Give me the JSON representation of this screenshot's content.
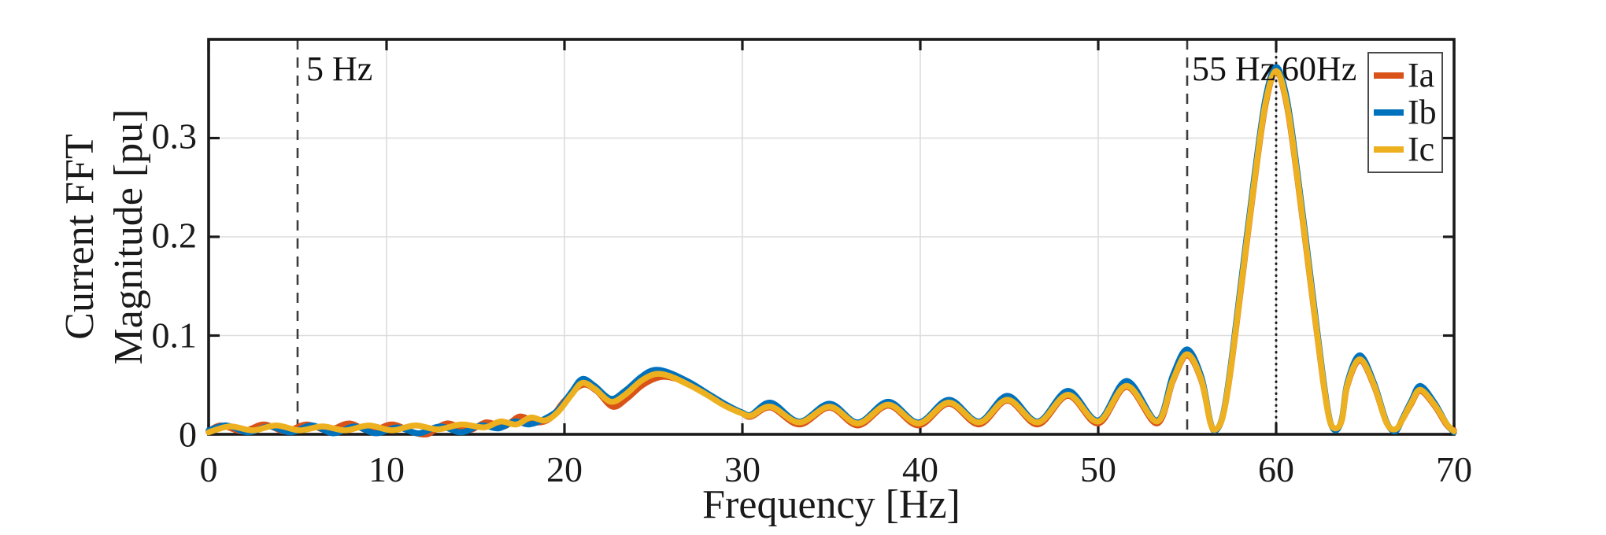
{
  "chart_data": {
    "type": "line",
    "title": "",
    "xlabel": "Frequency [Hz]",
    "ylabel": "Current FFT Magnitude [pu]",
    "ylabel_lines": [
      "Current FFT",
      "Magnitude [pu]"
    ],
    "xlim": [
      0,
      70
    ],
    "ylim": [
      0,
      0.4
    ],
    "grid": true,
    "x_ticks": [
      0,
      10,
      20,
      30,
      40,
      50,
      60,
      70
    ],
    "x_tick_labels": [
      "0",
      "10",
      "20",
      "30",
      "40",
      "50",
      "60",
      "70"
    ],
    "y_ticks": [
      0,
      0.1,
      0.2,
      0.3
    ],
    "y_tick_labels": [
      "0",
      "0.1",
      "0.2",
      "0.3"
    ],
    "legend": {
      "position": "northeast",
      "entries": [
        {
          "label": "Ia",
          "color": "#D95319"
        },
        {
          "label": "Ib",
          "color": "#0072BD"
        },
        {
          "label": "Ic",
          "color": "#EDB120"
        }
      ]
    },
    "annotations": [
      {
        "label": "5 Hz",
        "x": 5,
        "line": "dashed"
      },
      {
        "label": "55 Hz",
        "x": 55,
        "line": "dashed"
      },
      {
        "label": "60Hz",
        "x": 60,
        "line": "dotted"
      }
    ],
    "main_peak": {
      "x": 60,
      "y": 0.37
    },
    "series": [
      {
        "name": "Ia",
        "color": "#D95319",
        "points": [
          [
            0,
            0.003
          ],
          [
            0.7,
            0.009
          ],
          [
            1.9,
            0.003
          ],
          [
            3.1,
            0.01
          ],
          [
            4.3,
            0.003
          ],
          [
            5.5,
            0.01
          ],
          [
            6.7,
            0.004
          ],
          [
            7.9,
            0.011
          ],
          [
            9.1,
            0.003
          ],
          [
            10.3,
            0.01
          ],
          [
            11.5,
            0.002
          ],
          [
            12.3,
            0.0
          ],
          [
            13.4,
            0.011
          ],
          [
            14.6,
            0.004
          ],
          [
            15.6,
            0.012
          ],
          [
            16.6,
            0.008
          ],
          [
            17.5,
            0.018
          ],
          [
            18.4,
            0.012
          ],
          [
            19.2,
            0.016
          ],
          [
            20.0,
            0.034
          ],
          [
            21.0,
            0.05
          ],
          [
            21.8,
            0.044
          ],
          [
            22.7,
            0.028
          ],
          [
            23.5,
            0.036
          ],
          [
            24.4,
            0.05
          ],
          [
            25.4,
            0.058
          ],
          [
            26.3,
            0.056
          ],
          [
            27.2,
            0.049
          ],
          [
            28.1,
            0.04
          ],
          [
            29.0,
            0.03
          ],
          [
            30.0,
            0.021
          ],
          [
            30.5,
            0.018
          ],
          [
            31.6,
            0.027
          ],
          [
            33.2,
            0.01
          ],
          [
            34.9,
            0.027
          ],
          [
            36.5,
            0.009
          ],
          [
            38.2,
            0.029
          ],
          [
            39.9,
            0.009
          ],
          [
            41.6,
            0.031
          ],
          [
            43.3,
            0.01
          ],
          [
            44.9,
            0.034
          ],
          [
            46.6,
            0.01
          ],
          [
            48.3,
            0.039
          ],
          [
            50.0,
            0.011
          ],
          [
            51.6,
            0.048
          ],
          [
            53.3,
            0.011
          ],
          [
            54.2,
            0.054
          ],
          [
            55.0,
            0.08
          ],
          [
            55.8,
            0.054
          ],
          [
            56.3,
            0.012
          ],
          [
            56.6,
            0.004
          ],
          [
            57.0,
            0.018
          ],
          [
            57.4,
            0.059
          ],
          [
            58.1,
            0.158
          ],
          [
            58.8,
            0.258
          ],
          [
            59.4,
            0.333
          ],
          [
            60.0,
            0.368
          ],
          [
            60.6,
            0.333
          ],
          [
            61.2,
            0.258
          ],
          [
            61.9,
            0.158
          ],
          [
            62.6,
            0.059
          ],
          [
            63.0,
            0.015
          ],
          [
            63.35,
            0.005
          ],
          [
            63.7,
            0.015
          ],
          [
            64.0,
            0.049
          ],
          [
            64.7,
            0.075
          ],
          [
            65.5,
            0.049
          ],
          [
            66.2,
            0.012
          ],
          [
            66.7,
            0.004
          ],
          [
            67.1,
            0.015
          ],
          [
            67.6,
            0.031
          ],
          [
            68.1,
            0.044
          ],
          [
            68.9,
            0.029
          ],
          [
            69.6,
            0.009
          ],
          [
            70,
            0.004
          ]
        ]
      },
      {
        "name": "Ib",
        "color": "#0072BD",
        "points": [
          [
            0,
            0.004
          ],
          [
            1.0,
            0.009
          ],
          [
            2.2,
            0.002
          ],
          [
            3.4,
            0.008
          ],
          [
            4.6,
            0.002
          ],
          [
            5.8,
            0.009
          ],
          [
            7.0,
            0.001
          ],
          [
            8.2,
            0.008
          ],
          [
            9.4,
            0.001
          ],
          [
            10.6,
            0.007
          ],
          [
            11.8,
            0.001
          ],
          [
            13.0,
            0.008
          ],
          [
            14.2,
            0.002
          ],
          [
            15.3,
            0.009
          ],
          [
            16.3,
            0.006
          ],
          [
            17.2,
            0.013
          ],
          [
            18.0,
            0.01
          ],
          [
            18.8,
            0.015
          ],
          [
            19.6,
            0.024
          ],
          [
            20.4,
            0.043
          ],
          [
            21.0,
            0.056
          ],
          [
            21.7,
            0.049
          ],
          [
            22.6,
            0.036
          ],
          [
            23.4,
            0.044
          ],
          [
            24.3,
            0.058
          ],
          [
            25.0,
            0.065
          ],
          [
            25.8,
            0.063
          ],
          [
            27.0,
            0.053
          ],
          [
            28.0,
            0.042
          ],
          [
            29.0,
            0.031
          ],
          [
            30.0,
            0.022
          ],
          [
            30.5,
            0.02
          ],
          [
            31.6,
            0.032
          ],
          [
            33.2,
            0.013
          ],
          [
            34.9,
            0.031
          ],
          [
            36.5,
            0.012
          ],
          [
            38.2,
            0.033
          ],
          [
            39.9,
            0.012
          ],
          [
            41.6,
            0.035
          ],
          [
            43.3,
            0.013
          ],
          [
            44.9,
            0.039
          ],
          [
            46.6,
            0.013
          ],
          [
            48.3,
            0.044
          ],
          [
            50.0,
            0.014
          ],
          [
            51.6,
            0.054
          ],
          [
            53.3,
            0.014
          ],
          [
            54.2,
            0.06
          ],
          [
            55.0,
            0.086
          ],
          [
            55.8,
            0.058
          ],
          [
            56.3,
            0.013
          ],
          [
            56.6,
            0.004
          ],
          [
            57.0,
            0.019
          ],
          [
            57.4,
            0.063
          ],
          [
            58.1,
            0.165
          ],
          [
            58.8,
            0.265
          ],
          [
            59.4,
            0.34
          ],
          [
            60.0,
            0.372
          ],
          [
            60.6,
            0.34
          ],
          [
            61.2,
            0.265
          ],
          [
            61.9,
            0.165
          ],
          [
            62.6,
            0.063
          ],
          [
            63.0,
            0.016
          ],
          [
            63.35,
            0.004
          ],
          [
            63.7,
            0.016
          ],
          [
            64.0,
            0.052
          ],
          [
            64.7,
            0.08
          ],
          [
            65.5,
            0.052
          ],
          [
            66.2,
            0.013
          ],
          [
            66.7,
            0.003
          ],
          [
            67.1,
            0.016
          ],
          [
            67.6,
            0.034
          ],
          [
            68.1,
            0.049
          ],
          [
            68.9,
            0.032
          ],
          [
            69.6,
            0.01
          ],
          [
            70,
            0.002
          ]
        ]
      },
      {
        "name": "Ic",
        "color": "#EDB120",
        "points": [
          [
            0,
            0.002
          ],
          [
            1.2,
            0.008
          ],
          [
            2.5,
            0.004
          ],
          [
            3.8,
            0.009
          ],
          [
            5.1,
            0.004
          ],
          [
            6.4,
            0.008
          ],
          [
            7.7,
            0.004
          ],
          [
            9.0,
            0.009
          ],
          [
            10.3,
            0.004
          ],
          [
            11.6,
            0.009
          ],
          [
            12.9,
            0.005
          ],
          [
            14.2,
            0.01
          ],
          [
            15.5,
            0.007
          ],
          [
            16.4,
            0.013
          ],
          [
            17.3,
            0.01
          ],
          [
            18.1,
            0.017
          ],
          [
            18.9,
            0.014
          ],
          [
            19.6,
            0.022
          ],
          [
            20.4,
            0.04
          ],
          [
            21.0,
            0.052
          ],
          [
            21.7,
            0.046
          ],
          [
            22.6,
            0.033
          ],
          [
            23.4,
            0.04
          ],
          [
            24.3,
            0.054
          ],
          [
            25.1,
            0.061
          ],
          [
            25.9,
            0.059
          ],
          [
            27.0,
            0.05
          ],
          [
            28.0,
            0.04
          ],
          [
            29.0,
            0.029
          ],
          [
            30.0,
            0.021
          ],
          [
            30.5,
            0.019
          ],
          [
            31.6,
            0.028
          ],
          [
            33.2,
            0.012
          ],
          [
            34.9,
            0.028
          ],
          [
            36.5,
            0.011
          ],
          [
            38.2,
            0.03
          ],
          [
            39.9,
            0.011
          ],
          [
            41.6,
            0.032
          ],
          [
            43.3,
            0.012
          ],
          [
            44.9,
            0.035
          ],
          [
            46.6,
            0.012
          ],
          [
            48.3,
            0.04
          ],
          [
            50.0,
            0.013
          ],
          [
            51.6,
            0.049
          ],
          [
            53.3,
            0.013
          ],
          [
            54.2,
            0.055
          ],
          [
            55.0,
            0.081
          ],
          [
            55.8,
            0.055
          ],
          [
            56.3,
            0.012
          ],
          [
            56.6,
            0.005
          ],
          [
            57.0,
            0.018
          ],
          [
            57.4,
            0.06
          ],
          [
            58.1,
            0.16
          ],
          [
            58.8,
            0.26
          ],
          [
            59.4,
            0.335
          ],
          [
            60.0,
            0.368
          ],
          [
            60.6,
            0.335
          ],
          [
            61.2,
            0.26
          ],
          [
            61.9,
            0.16
          ],
          [
            62.6,
            0.06
          ],
          [
            63.0,
            0.015
          ],
          [
            63.35,
            0.006
          ],
          [
            63.7,
            0.015
          ],
          [
            64.0,
            0.05
          ],
          [
            64.7,
            0.076
          ],
          [
            65.5,
            0.05
          ],
          [
            66.2,
            0.012
          ],
          [
            66.7,
            0.005
          ],
          [
            67.1,
            0.015
          ],
          [
            67.6,
            0.032
          ],
          [
            68.1,
            0.045
          ],
          [
            68.9,
            0.03
          ],
          [
            69.6,
            0.01
          ],
          [
            70,
            0.003
          ]
        ]
      }
    ]
  }
}
